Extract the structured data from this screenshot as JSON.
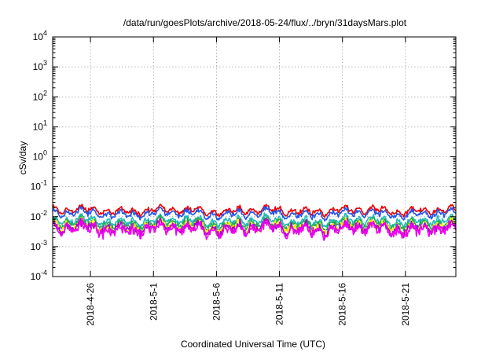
{
  "chart_data": {
    "type": "line",
    "title": "/data/run/goesPlots/archive/2018-05-24/flux/../bryn/31daysMars.plot",
    "xlabel": "Coordinated Universal Time (UTC)",
    "ylabel": "cSv/day",
    "y_scale": "log",
    "ylim": [
      0.0001,
      10000
    ],
    "xlim": [
      "2018-04-23",
      "2018-05-25"
    ],
    "y_ticks": [
      {
        "mant": "10",
        "exp": "-4",
        "value": 0.0001
      },
      {
        "mant": "10",
        "exp": "-3",
        "value": 0.001
      },
      {
        "mant": "10",
        "exp": "-2",
        "value": 0.01
      },
      {
        "mant": "10",
        "exp": "-1",
        "value": 0.1
      },
      {
        "mant": "10",
        "exp": "0",
        "value": 1
      },
      {
        "mant": "10",
        "exp": "1",
        "value": 10
      },
      {
        "mant": "10",
        "exp": "2",
        "value": 100
      },
      {
        "mant": "10",
        "exp": "3",
        "value": 1000
      },
      {
        "mant": "10",
        "exp": "4",
        "value": 10000
      }
    ],
    "x_ticks": [
      {
        "label": "2018-4-26",
        "date": "2018-04-26"
      },
      {
        "label": "2018-5-1",
        "date": "2018-05-01"
      },
      {
        "label": "2018-5-6",
        "date": "2018-05-06"
      },
      {
        "label": "2018-5-11",
        "date": "2018-05-11"
      },
      {
        "label": "2018-5-16",
        "date": "2018-05-16"
      },
      {
        "label": "2018-5-21",
        "date": "2018-05-21"
      }
    ],
    "grid": true,
    "series": [
      {
        "color": "#ee0000",
        "level": 0.016,
        "spread": 0.13
      },
      {
        "color": "#2255ee",
        "level": 0.0125,
        "spread": 0.11
      },
      {
        "color": "#22bbbb",
        "level": 0.0072,
        "spread": 0.13
      },
      {
        "color": "#22aa55",
        "level": 0.0058,
        "spread": 0.13
      },
      {
        "color": "#ffee00",
        "level": 0.0046,
        "spread": 0.15
      },
      {
        "color": "#aa00cc",
        "level": 0.0042,
        "spread": 0.16
      },
      {
        "color": "#ee00ee",
        "level": 0.0037,
        "spread": 0.18
      }
    ]
  }
}
